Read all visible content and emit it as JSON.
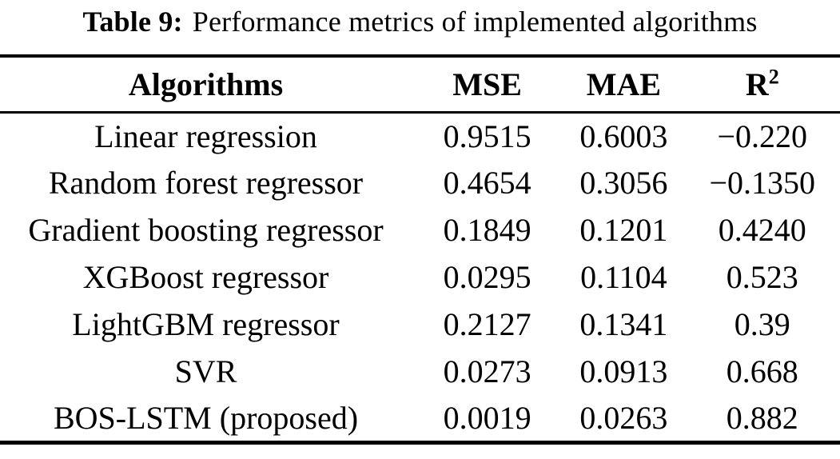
{
  "caption": {
    "label": "Table 9:",
    "text": "Performance metrics of implemented algorithms"
  },
  "table": {
    "headers": {
      "algorithms": "Algorithms",
      "mse": "MSE",
      "mae": "MAE",
      "r_base": "R",
      "r_exp": "2"
    },
    "rows": [
      {
        "algorithm": "Linear regression",
        "mse": "0.9515",
        "mae": "0.6003",
        "r2": "−0.220"
      },
      {
        "algorithm": "Random forest regressor",
        "mse": "0.4654",
        "mae": "0.3056",
        "r2": "−0.1350"
      },
      {
        "algorithm": "Gradient boosting regressor",
        "mse": "0.1849",
        "mae": "0.1201",
        "r2": "0.4240"
      },
      {
        "algorithm": "XGBoost regressor",
        "mse": "0.0295",
        "mae": "0.1104",
        "r2": "0.523"
      },
      {
        "algorithm": "LightGBM regressor",
        "mse": "0.2127",
        "mae": "0.1341",
        "r2": "0.39"
      },
      {
        "algorithm": "SVR",
        "mse": "0.0273",
        "mae": "0.0913",
        "r2": "0.668"
      },
      {
        "algorithm": "BOS-LSTM (proposed)",
        "mse": "0.0019",
        "mae": "0.0263",
        "r2": "0.882"
      }
    ]
  }
}
